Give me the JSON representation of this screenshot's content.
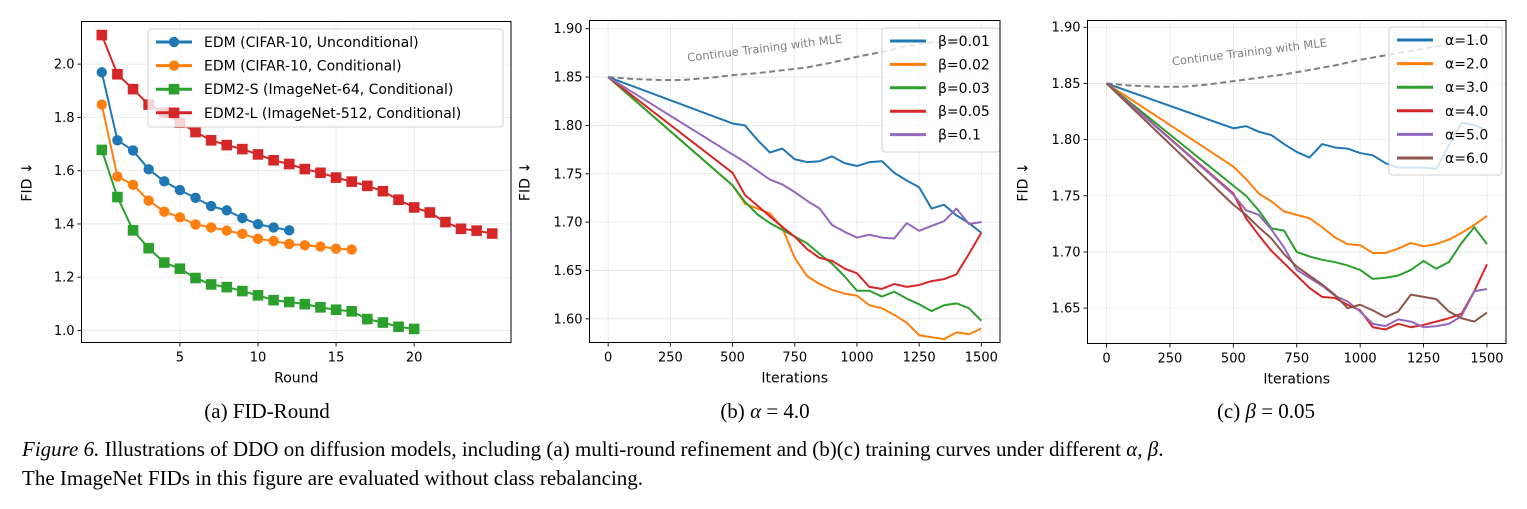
{
  "colors": {
    "blue": "#1f77b4",
    "orange": "#ff7f0e",
    "green": "#2ca02c",
    "red": "#d62728",
    "purple": "#9467bd",
    "brown": "#8c564b",
    "mle": "#808080",
    "grid": "#e5e5e5"
  },
  "chart_data": [
    {
      "id": "a",
      "type": "line",
      "subcaption": "(a) FID-Round",
      "title": "",
      "xlabel": "Round",
      "ylabel": "FID ↓",
      "xlim": [
        -1.3,
        26.2
      ],
      "ylim": [
        0.955,
        2.16
      ],
      "xticks": [
        5,
        10,
        15,
        20
      ],
      "yticks": [
        1.0,
        1.2,
        1.4,
        1.6,
        1.8,
        2.0
      ],
      "ytick_format": 1,
      "grid": true,
      "legend": "upper right",
      "series": [
        {
          "name": "EDM (CIFAR-10, Unconditional)",
          "color": "blue",
          "marker": "circle",
          "x": [
            0,
            1,
            2,
            3,
            4,
            5,
            6,
            7,
            8,
            9,
            10,
            11,
            12
          ],
          "values": [
            1.969,
            1.714,
            1.676,
            1.605,
            1.56,
            1.527,
            1.498,
            1.467,
            1.451,
            1.422,
            1.399,
            1.387,
            1.376
          ]
        },
        {
          "name": "EDM (CIFAR-10, Conditional)",
          "color": "orange",
          "marker": "circle",
          "x": [
            0,
            1,
            2,
            3,
            4,
            5,
            6,
            7,
            8,
            9,
            10,
            11,
            12,
            13,
            14,
            15,
            16
          ],
          "values": [
            1.848,
            1.578,
            1.547,
            1.488,
            1.446,
            1.425,
            1.398,
            1.387,
            1.375,
            1.363,
            1.344,
            1.336,
            1.325,
            1.32,
            1.315,
            1.307,
            1.304
          ]
        },
        {
          "name": "EDM2-S (ImageNet-64, Conditional)",
          "color": "green",
          "marker": "square",
          "x": [
            0,
            1,
            2,
            3,
            4,
            5,
            6,
            7,
            8,
            9,
            10,
            11,
            12,
            13,
            14,
            15,
            16,
            17,
            18,
            19,
            20
          ],
          "values": [
            1.678,
            1.501,
            1.376,
            1.309,
            1.255,
            1.232,
            1.197,
            1.173,
            1.163,
            1.148,
            1.132,
            1.114,
            1.107,
            1.099,
            1.087,
            1.078,
            1.072,
            1.043,
            1.03,
            1.014,
            1.006
          ]
        },
        {
          "name": "EDM2-L (ImageNet-512, Conditional)",
          "color": "red",
          "marker": "square",
          "x": [
            0,
            1,
            2,
            3,
            4,
            5,
            6,
            7,
            8,
            9,
            10,
            11,
            12,
            13,
            14,
            15,
            16,
            17,
            18,
            19,
            20,
            21,
            22,
            23,
            24,
            25
          ],
          "values": [
            2.109,
            1.962,
            1.906,
            1.848,
            1.818,
            1.78,
            1.745,
            1.714,
            1.696,
            1.681,
            1.661,
            1.639,
            1.625,
            1.606,
            1.592,
            1.574,
            1.559,
            1.543,
            1.523,
            1.491,
            1.462,
            1.443,
            1.407,
            1.382,
            1.375,
            1.364
          ]
        }
      ]
    },
    {
      "id": "b",
      "type": "line",
      "subcaption_prefix": "(b) ",
      "subcaption_var": "α",
      "subcaption_rest": " = 4.0",
      "title": "",
      "xlabel": "Iterations",
      "ylabel": "FID ↓",
      "xlim": [
        -75,
        1575
      ],
      "ylim": [
        1.5755,
        1.9085
      ],
      "xticks": [
        0,
        250,
        500,
        750,
        1000,
        1250,
        1500
      ],
      "yticks": [
        1.6,
        1.65,
        1.7,
        1.75,
        1.8,
        1.85,
        1.9
      ],
      "ytick_format": 2,
      "grid": true,
      "legend": "upper right",
      "annotation": "Continue Training with MLE",
      "mle_line": {
        "x": [
          0,
          100,
          200,
          300,
          400,
          500,
          600,
          700,
          800,
          900,
          1000,
          1100,
          1200,
          1300,
          1400,
          1500
        ],
        "values": [
          1.85,
          1.848,
          1.847,
          1.847,
          1.849,
          1.852,
          1.854,
          1.857,
          1.86,
          1.865,
          1.871,
          1.876,
          1.882,
          1.886,
          1.889,
          1.891
        ]
      },
      "x": [
        0,
        500,
        550,
        600,
        650,
        700,
        750,
        800,
        850,
        900,
        950,
        1000,
        1050,
        1100,
        1150,
        1200,
        1250,
        1300,
        1350,
        1400,
        1450,
        1500
      ],
      "series": [
        {
          "name": "β=0.01",
          "color": "blue",
          "values": [
            1.85,
            1.802,
            1.8,
            1.785,
            1.772,
            1.776,
            1.765,
            1.762,
            1.763,
            1.768,
            1.761,
            1.758,
            1.762,
            1.763,
            1.751,
            1.743,
            1.736,
            1.714,
            1.718,
            1.707,
            1.699,
            1.689
          ]
        },
        {
          "name": "β=0.02",
          "color": "orange",
          "values": [
            1.85,
            1.738,
            1.719,
            1.714,
            1.709,
            1.694,
            1.663,
            1.644,
            1.636,
            1.63,
            1.626,
            1.624,
            1.614,
            1.611,
            1.604,
            1.596,
            1.583,
            1.581,
            1.579,
            1.586,
            1.584,
            1.59
          ]
        },
        {
          "name": "β=0.03",
          "color": "green",
          "values": [
            1.85,
            1.738,
            1.721,
            1.708,
            1.699,
            1.692,
            1.685,
            1.678,
            1.667,
            1.657,
            1.644,
            1.629,
            1.629,
            1.623,
            1.628,
            1.621,
            1.615,
            1.608,
            1.614,
            1.616,
            1.611,
            1.598
          ]
        },
        {
          "name": "β=0.05",
          "color": "red",
          "values": [
            1.85,
            1.751,
            1.728,
            1.717,
            1.706,
            1.695,
            1.685,
            1.672,
            1.663,
            1.66,
            1.652,
            1.647,
            1.633,
            1.631,
            1.636,
            1.633,
            1.635,
            1.639,
            1.641,
            1.646,
            1.667,
            1.689
          ]
        },
        {
          "name": "β=0.1",
          "color": "purple",
          "values": [
            1.85,
            1.77,
            1.762,
            1.753,
            1.744,
            1.739,
            1.731,
            1.722,
            1.714,
            1.697,
            1.69,
            1.684,
            1.687,
            1.684,
            1.683,
            1.699,
            1.691,
            1.696,
            1.701,
            1.714,
            1.698,
            1.7
          ]
        }
      ]
    },
    {
      "id": "c",
      "type": "line",
      "subcaption_prefix": "(c) ",
      "subcaption_var": "β",
      "subcaption_rest": " = 0.05",
      "title": "",
      "xlabel": "Iterations",
      "ylabel": "FID ↓",
      "xlim": [
        -75,
        1575
      ],
      "ylim": [
        1.6185,
        1.906
      ],
      "xticks": [
        0,
        250,
        500,
        750,
        1000,
        1250,
        1500
      ],
      "yticks": [
        1.65,
        1.7,
        1.75,
        1.8,
        1.85,
        1.9
      ],
      "ytick_format": 2,
      "grid": true,
      "legend": "upper right",
      "annotation": "Continue Training with MLE",
      "mle_line": {
        "x": [
          0,
          100,
          200,
          300,
          400,
          500,
          600,
          700,
          800,
          900,
          1000,
          1100,
          1200,
          1300,
          1400,
          1500
        ],
        "values": [
          1.85,
          1.848,
          1.847,
          1.847,
          1.849,
          1.852,
          1.855,
          1.858,
          1.862,
          1.866,
          1.871,
          1.875,
          1.879,
          1.883,
          1.887,
          1.89
        ]
      },
      "x": [
        0,
        500,
        550,
        600,
        650,
        700,
        750,
        800,
        850,
        900,
        950,
        1000,
        1050,
        1100,
        1150,
        1200,
        1250,
        1300,
        1350,
        1400,
        1450,
        1500
      ],
      "series": [
        {
          "name": "α=1.0",
          "color": "blue",
          "values": [
            1.85,
            1.81,
            1.812,
            1.807,
            1.804,
            1.796,
            1.789,
            1.784,
            1.796,
            1.793,
            1.792,
            1.788,
            1.786,
            1.779,
            1.775,
            1.775,
            1.775,
            1.774,
            1.795,
            1.815,
            1.813,
            1.808
          ]
        },
        {
          "name": "α=2.0",
          "color": "orange",
          "values": [
            1.85,
            1.776,
            1.765,
            1.752,
            1.745,
            1.736,
            1.733,
            1.73,
            1.722,
            1.713,
            1.707,
            1.706,
            1.699,
            1.699,
            1.703,
            1.708,
            1.705,
            1.707,
            1.711,
            1.717,
            1.724,
            1.732
          ]
        },
        {
          "name": "α=3.0",
          "color": "green",
          "values": [
            1.85,
            1.759,
            1.75,
            1.737,
            1.721,
            1.719,
            1.7,
            1.696,
            1.693,
            1.691,
            1.688,
            1.684,
            1.676,
            1.677,
            1.679,
            1.684,
            1.692,
            1.685,
            1.691,
            1.708,
            1.722,
            1.707
          ]
        },
        {
          "name": "α=4.0",
          "color": "red",
          "values": [
            1.85,
            1.752,
            1.73,
            1.715,
            1.701,
            1.69,
            1.679,
            1.668,
            1.66,
            1.659,
            1.653,
            1.648,
            1.633,
            1.631,
            1.636,
            1.633,
            1.635,
            1.638,
            1.641,
            1.645,
            1.665,
            1.689
          ]
        },
        {
          "name": "α=5.0",
          "color": "purple",
          "values": [
            1.85,
            1.751,
            1.737,
            1.733,
            1.72,
            1.704,
            1.684,
            1.677,
            1.67,
            1.661,
            1.656,
            1.647,
            1.636,
            1.634,
            1.64,
            1.638,
            1.633,
            1.634,
            1.636,
            1.643,
            1.665,
            1.667
          ]
        },
        {
          "name": "α=6.0",
          "color": "brown",
          "values": [
            1.85,
            1.742,
            1.733,
            1.722,
            1.712,
            1.698,
            1.687,
            1.679,
            1.671,
            1.662,
            1.65,
            1.653,
            1.648,
            1.642,
            1.647,
            1.662,
            1.66,
            1.658,
            1.647,
            1.641,
            1.638,
            1.646
          ]
        }
      ]
    }
  ],
  "caption": {
    "figure_label": "Figure 6.",
    "text_part1": " Illustrations of DDO on diffusion models, including (a) multi-round refinement and (b)(c) training curves under different ",
    "var1": "α",
    "sep": ", ",
    "var2": "β",
    "end": ".",
    "line2": "The ImageNet FIDs in this figure are evaluated without class rebalancing."
  }
}
